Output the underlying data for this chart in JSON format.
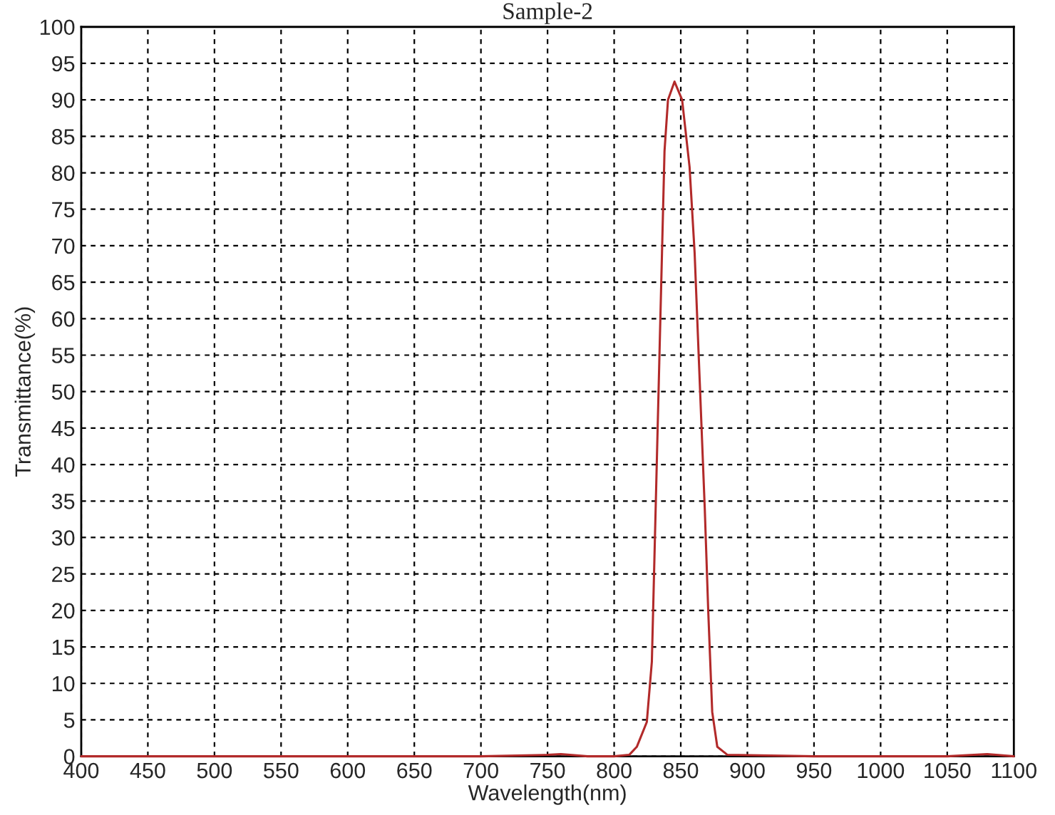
{
  "chart_data": {
    "type": "line",
    "title": "Sample-2",
    "xlabel": "Wavelength(nm)",
    "ylabel": "Transmittance(%)",
    "series": [
      {
        "color": "#b22a2a",
        "x": [
          400,
          500,
          600,
          700,
          750,
          760,
          780,
          800,
          811.3,
          817,
          824.5,
          828.3,
          830.2,
          832.1,
          834,
          835.9,
          837.8,
          840.4,
          845.3,
          851,
          856.6,
          860.4,
          864.2,
          868,
          870.6,
          873.6,
          877.4,
          885,
          950,
          1050,
          1080,
          1100
        ],
        "values": [
          0,
          0,
          0,
          0,
          0.2,
          0.3,
          0,
          0,
          0.2,
          1.3,
          4.7,
          13,
          27,
          41,
          55,
          69,
          83,
          90,
          92.5,
          90,
          80.8,
          69,
          51.5,
          34,
          20,
          6.1,
          1.3,
          0.2,
          0,
          0,
          0.3,
          0
        ]
      }
    ],
    "xlim": [
      400,
      1100
    ],
    "xticks": [
      400,
      450,
      500,
      550,
      600,
      650,
      700,
      750,
      800,
      850,
      900,
      950,
      1000,
      1050,
      1100
    ],
    "ylim": [
      0,
      100
    ],
    "yticks": [
      0,
      5,
      10,
      15,
      20,
      25,
      30,
      35,
      40,
      45,
      50,
      55,
      60,
      65,
      70,
      75,
      80,
      85,
      90,
      95,
      100
    ],
    "grid": true,
    "line_style": "solid",
    "marker": "none"
  }
}
